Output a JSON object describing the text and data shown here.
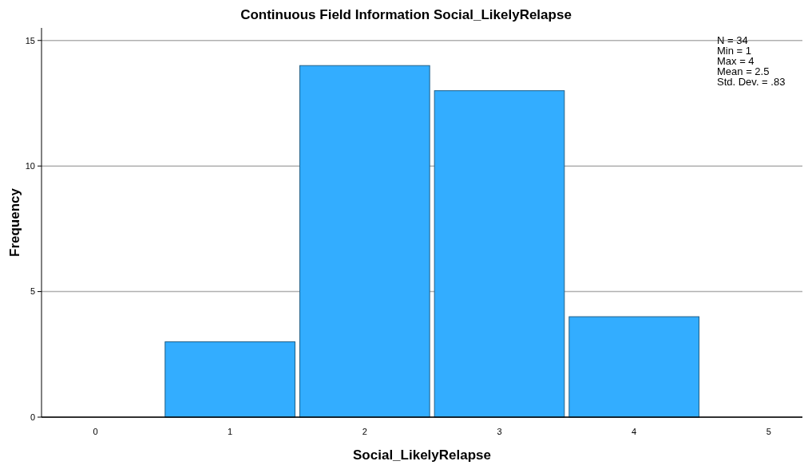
{
  "chart_data": {
    "type": "histogram",
    "title": "Continuous Field Information Social_LikelyRelapse",
    "xlabel": "Social_LikelyRelapse",
    "ylabel": "Frequency",
    "bins": [
      0.5,
      1.5,
      2.5,
      3.5,
      4.5
    ],
    "values": [
      3,
      14,
      13,
      4
    ],
    "color": "#33adff",
    "xlim": [
      -0.4,
      5.25
    ],
    "xticks": [
      0,
      1,
      2,
      3,
      4,
      5
    ],
    "ylim": [
      0,
      15.5
    ],
    "yticks": [
      0,
      5,
      10,
      15
    ],
    "grid": "y",
    "annotations": [
      "N = 34",
      "Min = 1",
      "Max = 4",
      "Mean = 2.5",
      "Std. Dev. = .83"
    ]
  }
}
